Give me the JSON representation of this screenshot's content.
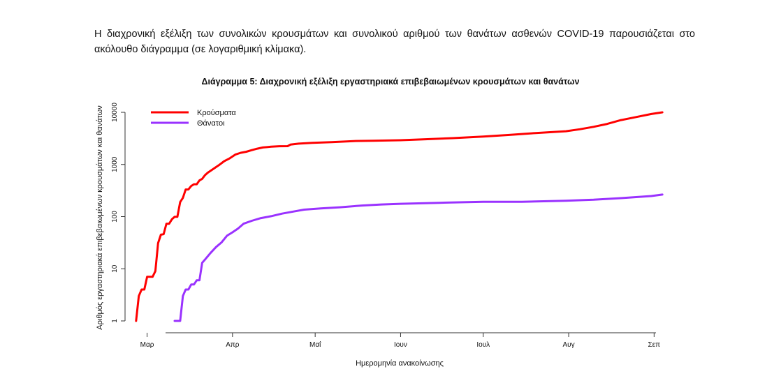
{
  "intro_text": "Η διαχρονική εξέλιξη των συνολικών κρουσμάτων και συνολικού αριθμού των θανάτων ασθενών COVID-19 παρουσιάζεται στο ακόλουθο διάγραμμα (σε λογαριθμική κλίμακα).",
  "chart_data": {
    "type": "line",
    "title": "Διάγραμμα 5: Διαχρονική εξέλιξη εργαστηριακά επιβεβαιωμένων κρουσμάτων και θανάτων",
    "xlabel": "Ημερομηνία ανακοίνωσης",
    "ylabel": "Αριθμός εργαστηριακά επιβεβαιωμένων κρουσμάτων και θανάτων",
    "yscale": "log",
    "ylim": [
      1,
      10000
    ],
    "yticks": [
      "1",
      "10",
      "100",
      "1000",
      "10000"
    ],
    "xticks": [
      "Μαρ",
      "Απρ",
      "Μαΐ",
      "Ιουν",
      "Ιουλ",
      "Αυγ",
      "Σεπ"
    ],
    "xlim": [
      "2020-02-22",
      "2020-09-07"
    ],
    "grid": false,
    "legend_position": "top-left",
    "series": [
      {
        "name": "Κρούσματα",
        "color": "#ff0000",
        "points": [
          [
            "2020-02-26",
            1
          ],
          [
            "2020-02-27",
            3
          ],
          [
            "2020-02-28",
            4
          ],
          [
            "2020-02-29",
            4
          ],
          [
            "2020-03-01",
            7
          ],
          [
            "2020-03-03",
            7
          ],
          [
            "2020-03-04",
            9
          ],
          [
            "2020-03-05",
            31
          ],
          [
            "2020-03-06",
            45
          ],
          [
            "2020-03-07",
            46
          ],
          [
            "2020-03-08",
            73
          ],
          [
            "2020-03-09",
            73
          ],
          [
            "2020-03-10",
            89
          ],
          [
            "2020-03-11",
            99
          ],
          [
            "2020-03-12",
            99
          ],
          [
            "2020-03-13",
            190
          ],
          [
            "2020-03-14",
            228
          ],
          [
            "2020-03-15",
            331
          ],
          [
            "2020-03-16",
            331
          ],
          [
            "2020-03-17",
            387
          ],
          [
            "2020-03-18",
            418
          ],
          [
            "2020-03-19",
            418
          ],
          [
            "2020-03-20",
            495
          ],
          [
            "2020-03-21",
            530
          ],
          [
            "2020-03-22",
            624
          ],
          [
            "2020-03-23",
            695
          ],
          [
            "2020-03-25",
            821
          ],
          [
            "2020-03-27",
            966
          ],
          [
            "2020-03-29",
            1156
          ],
          [
            "2020-03-31",
            1314
          ],
          [
            "2020-04-02",
            1544
          ],
          [
            "2020-04-04",
            1673
          ],
          [
            "2020-04-06",
            1755
          ],
          [
            "2020-04-08",
            1884
          ],
          [
            "2020-04-10",
            2011
          ],
          [
            "2020-04-12",
            2114
          ],
          [
            "2020-04-15",
            2192
          ],
          [
            "2020-04-18",
            2235
          ],
          [
            "2020-04-21",
            2245
          ],
          [
            "2020-04-22",
            2401
          ],
          [
            "2020-04-25",
            2506
          ],
          [
            "2020-04-30",
            2591
          ],
          [
            "2020-05-07",
            2678
          ],
          [
            "2020-05-15",
            2810
          ],
          [
            "2020-05-22",
            2850
          ],
          [
            "2020-06-01",
            2917
          ],
          [
            "2020-06-10",
            3049
          ],
          [
            "2020-06-20",
            3203
          ],
          [
            "2020-07-01",
            3432
          ],
          [
            "2020-07-10",
            3672
          ],
          [
            "2020-07-20",
            4007
          ],
          [
            "2020-07-31",
            4337
          ],
          [
            "2020-08-05",
            4737
          ],
          [
            "2020-08-10",
            5270
          ],
          [
            "2020-08-15",
            6000
          ],
          [
            "2020-08-20",
            7100
          ],
          [
            "2020-08-25",
            8000
          ],
          [
            "2020-08-31",
            9280
          ],
          [
            "2020-09-04",
            10000
          ]
        ]
      },
      {
        "name": "Θάνατοι",
        "color": "#9a32ff",
        "points": [
          [
            "2020-03-11",
            1
          ],
          [
            "2020-03-13",
            1
          ],
          [
            "2020-03-14",
            3
          ],
          [
            "2020-03-15",
            4
          ],
          [
            "2020-03-16",
            4
          ],
          [
            "2020-03-17",
            5
          ],
          [
            "2020-03-18",
            5
          ],
          [
            "2020-03-19",
            6
          ],
          [
            "2020-03-20",
            6
          ],
          [
            "2020-03-21",
            13
          ],
          [
            "2020-03-22",
            15
          ],
          [
            "2020-03-24",
            20
          ],
          [
            "2020-03-26",
            26
          ],
          [
            "2020-03-28",
            32
          ],
          [
            "2020-03-30",
            43
          ],
          [
            "2020-04-01",
            50
          ],
          [
            "2020-04-03",
            59
          ],
          [
            "2020-04-05",
            73
          ],
          [
            "2020-04-08",
            83
          ],
          [
            "2020-04-11",
            93
          ],
          [
            "2020-04-15",
            102
          ],
          [
            "2020-04-19",
            114
          ],
          [
            "2020-04-23",
            125
          ],
          [
            "2020-04-27",
            136
          ],
          [
            "2020-05-03",
            144
          ],
          [
            "2020-05-10",
            151
          ],
          [
            "2020-05-18",
            163
          ],
          [
            "2020-05-25",
            171
          ],
          [
            "2020-06-01",
            176
          ],
          [
            "2020-06-15",
            184
          ],
          [
            "2020-07-01",
            192
          ],
          [
            "2020-07-15",
            193
          ],
          [
            "2020-07-31",
            202
          ],
          [
            "2020-08-10",
            211
          ],
          [
            "2020-08-20",
            226
          ],
          [
            "2020-08-31",
            248
          ],
          [
            "2020-09-04",
            265
          ]
        ]
      }
    ]
  }
}
